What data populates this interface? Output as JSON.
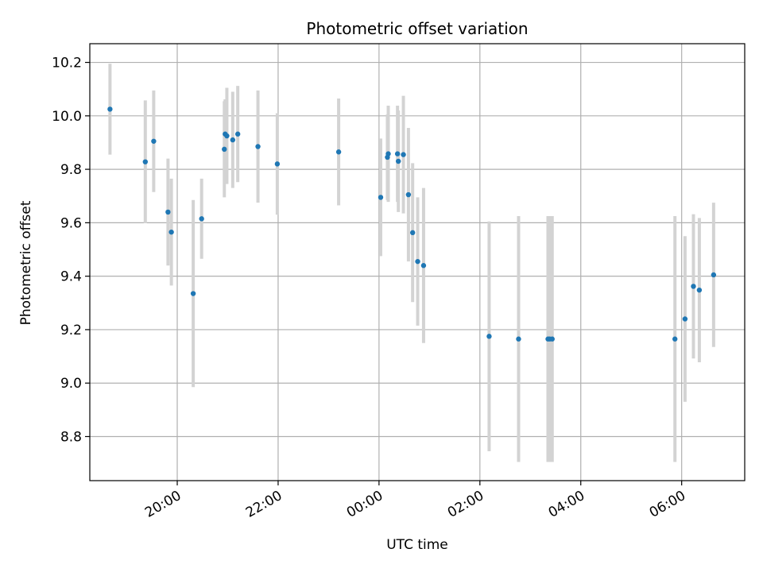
{
  "chart_data": {
    "type": "scatter",
    "title": "Photometric offset variation",
    "xlabel": "UTC time",
    "ylabel": "Photometric offset",
    "grid": true,
    "x_ticks": [
      "20:00",
      "22:00",
      "00:00",
      "02:00",
      "04:00",
      "06:00"
    ],
    "y_ticks": [
      "8.8",
      "9.0",
      "9.2",
      "9.4",
      "9.6",
      "9.8",
      "10.0",
      "10.2"
    ],
    "xlim": [
      "18:16",
      "07:15"
    ],
    "ylim": [
      8.635,
      10.27
    ],
    "colors": {
      "points": "#1f77b4",
      "error_bars": "#d3d3d3",
      "grid": "#b0b0b0"
    },
    "points": [
      {
        "x": "18:40",
        "y": 10.025,
        "err": 0.17
      },
      {
        "x": "19:22",
        "y": 9.828,
        "err": 0.23
      },
      {
        "x": "19:32",
        "y": 9.905,
        "err": 0.19
      },
      {
        "x": "19:49",
        "y": 9.64,
        "err": 0.2
      },
      {
        "x": "19:53",
        "y": 9.565,
        "err": 0.2
      },
      {
        "x": "20:19",
        "y": 9.335,
        "err": 0.35
      },
      {
        "x": "20:29",
        "y": 9.615,
        "err": 0.15
      },
      {
        "x": "20:56",
        "y": 9.875,
        "err": 0.18
      },
      {
        "x": "20:57",
        "y": 9.932,
        "err": 0.13
      },
      {
        "x": "20:59",
        "y": 9.925,
        "err": 0.18
      },
      {
        "x": "21:06",
        "y": 9.91,
        "err": 0.18
      },
      {
        "x": "21:12",
        "y": 9.932,
        "err": 0.18
      },
      {
        "x": "21:36",
        "y": 9.885,
        "err": 0.21
      },
      {
        "x": "21:59",
        "y": 9.82,
        "err": 0.19
      },
      {
        "x": "23:12",
        "y": 9.865,
        "err": 0.2
      },
      {
        "x": "00:02",
        "y": 9.695,
        "err": 0.22
      },
      {
        "x": "00:10",
        "y": 9.845,
        "err": 0.16
      },
      {
        "x": "00:11",
        "y": 9.858,
        "err": 0.18
      },
      {
        "x": "00:22",
        "y": 9.858,
        "err": 0.18
      },
      {
        "x": "00:23",
        "y": 9.83,
        "err": 0.19
      },
      {
        "x": "00:29",
        "y": 9.855,
        "err": 0.22
      },
      {
        "x": "00:35",
        "y": 9.705,
        "err": 0.25
      },
      {
        "x": "00:40",
        "y": 9.563,
        "err": 0.26
      },
      {
        "x": "00:46",
        "y": 9.455,
        "err": 0.24
      },
      {
        "x": "00:53",
        "y": 9.44,
        "err": 0.29
      },
      {
        "x": "02:11",
        "y": 9.175,
        "err": 0.43
      },
      {
        "x": "02:46",
        "y": 9.165,
        "err": 0.46
      },
      {
        "x": "03:21",
        "y": 9.165,
        "err": 0.46
      },
      {
        "x": "03:23",
        "y": 9.165,
        "err": 0.46
      },
      {
        "x": "03:26",
        "y": 9.165,
        "err": 0.46
      },
      {
        "x": "05:52",
        "y": 9.165,
        "err": 0.46
      },
      {
        "x": "06:04",
        "y": 9.24,
        "err": 0.31
      },
      {
        "x": "06:14",
        "y": 9.362,
        "err": 0.27
      },
      {
        "x": "06:21",
        "y": 9.348,
        "err": 0.27
      },
      {
        "x": "06:38",
        "y": 9.405,
        "err": 0.27
      }
    ]
  }
}
